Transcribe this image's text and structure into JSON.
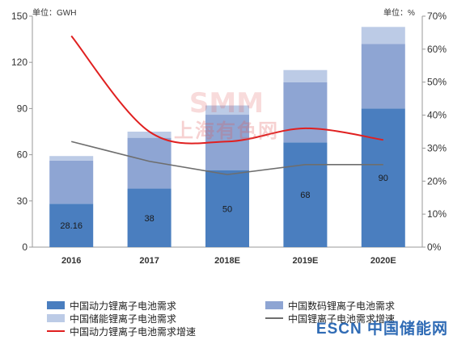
{
  "chart_data": {
    "type": "bar",
    "stacked": true,
    "categories": [
      "2016",
      "2017",
      "2018E",
      "2019E",
      "2020E"
    ],
    "y_left": {
      "ticks": [
        0,
        30,
        60,
        90,
        120,
        150
      ],
      "unit_label": "单位：GWH",
      "ylim": [
        0,
        150
      ]
    },
    "y_right": {
      "ticks": [
        "0%",
        "10%",
        "20%",
        "30%",
        "40%",
        "50%",
        "60%",
        "70%"
      ],
      "unit_label": "单位：%",
      "ylim": [
        0,
        70
      ]
    },
    "series": [
      {
        "name": "中国动力锂离子电池需求",
        "kind": "bar",
        "axis": "left",
        "color": "#4a7ebf",
        "values": [
          28.16,
          38,
          50,
          68,
          90
        ],
        "labels": [
          "28.16",
          "38",
          "50",
          "68",
          "90"
        ]
      },
      {
        "name": "中国数码锂离子电池需求",
        "kind": "bar",
        "axis": "left",
        "color": "#8ea5d3",
        "values": [
          28,
          33,
          36,
          39,
          42
        ]
      },
      {
        "name": "中国储能锂离子电池需求",
        "kind": "bar",
        "axis": "left",
        "color": "#bccbe6",
        "values": [
          3,
          4,
          6,
          8,
          11
        ]
      },
      {
        "name": "中国锂离子电池需求增速",
        "kind": "line",
        "axis": "right",
        "color": "#6e6e6e",
        "values": [
          32,
          26,
          22,
          25,
          25
        ]
      },
      {
        "name": "中国动力锂离子电池需求增速",
        "kind": "line",
        "axis": "right",
        "color": "#e02020",
        "values": [
          64,
          35,
          32,
          36,
          32.5
        ]
      }
    ],
    "legend_position": "bottom",
    "grid": false
  },
  "watermarks": {
    "top": "SMM",
    "middle": "上海有色网",
    "corner": "ESCN 中国储能网"
  }
}
